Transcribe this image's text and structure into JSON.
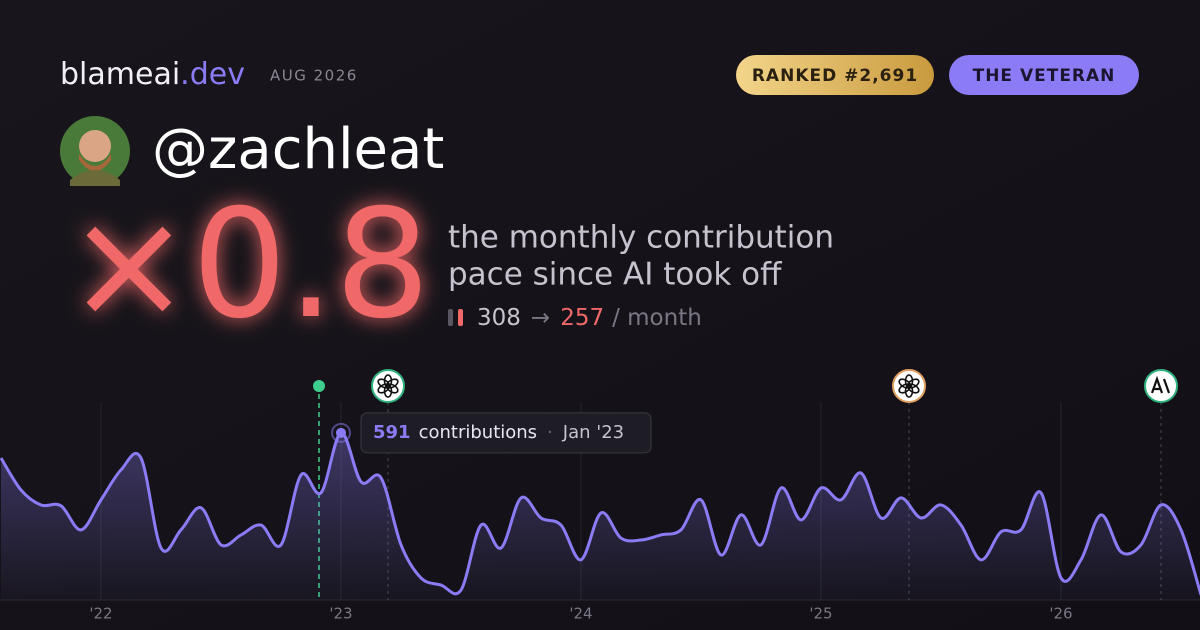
{
  "header": {
    "brand": "blameai",
    "brand_suffix": ".dev",
    "date": "AUG 2026",
    "rank_badge": "RANKED #2,691",
    "title_badge": "THE VETERAN",
    "handle": "@zachleat"
  },
  "stat": {
    "multiplier": "×0.8",
    "caption_line1": "the monthly contribution",
    "caption_line2": "pace since AI took off",
    "before": "308",
    "arrow": "→",
    "after": "257",
    "unit": "/ month"
  },
  "chart_data": {
    "type": "line",
    "categories": [
      null,
      null,
      null,
      null,
      null,
      "'22",
      null,
      null,
      null,
      null,
      null,
      null,
      null,
      null,
      null,
      null,
      null,
      "'23",
      null,
      null,
      null,
      null,
      null,
      null,
      null,
      null,
      null,
      null,
      null,
      "'24",
      null,
      null,
      null,
      null,
      null,
      null,
      null,
      null,
      null,
      null,
      null,
      "'25",
      null,
      null,
      null,
      null,
      null,
      null,
      null,
      null,
      null,
      null,
      null,
      "'26",
      null,
      null,
      null,
      null,
      null,
      null,
      null
    ],
    "series": [
      {
        "name": "contributions",
        "color": "#8b7cf6",
        "values": [
          502,
          389,
          336,
          333,
          248,
          354,
          460,
          502,
          184,
          248,
          326,
          195,
          230,
          265,
          195,
          442,
          379,
          591,
          418,
          432,
          195,
          78,
          53,
          35,
          265,
          184,
          361,
          290,
          265,
          142,
          308,
          219,
          212,
          230,
          248,
          354,
          159,
          301,
          195,
          396,
          283,
          396,
          354,
          449,
          290,
          361,
          290,
          336,
          265,
          142,
          241,
          248,
          379,
          78,
          142,
          301,
          170,
          195,
          336,
          248,
          18
        ]
      }
    ],
    "ylim": [
      0,
      700
    ],
    "tooltip": {
      "label": "Jan '23",
      "separator": "·"
    }
  }
}
